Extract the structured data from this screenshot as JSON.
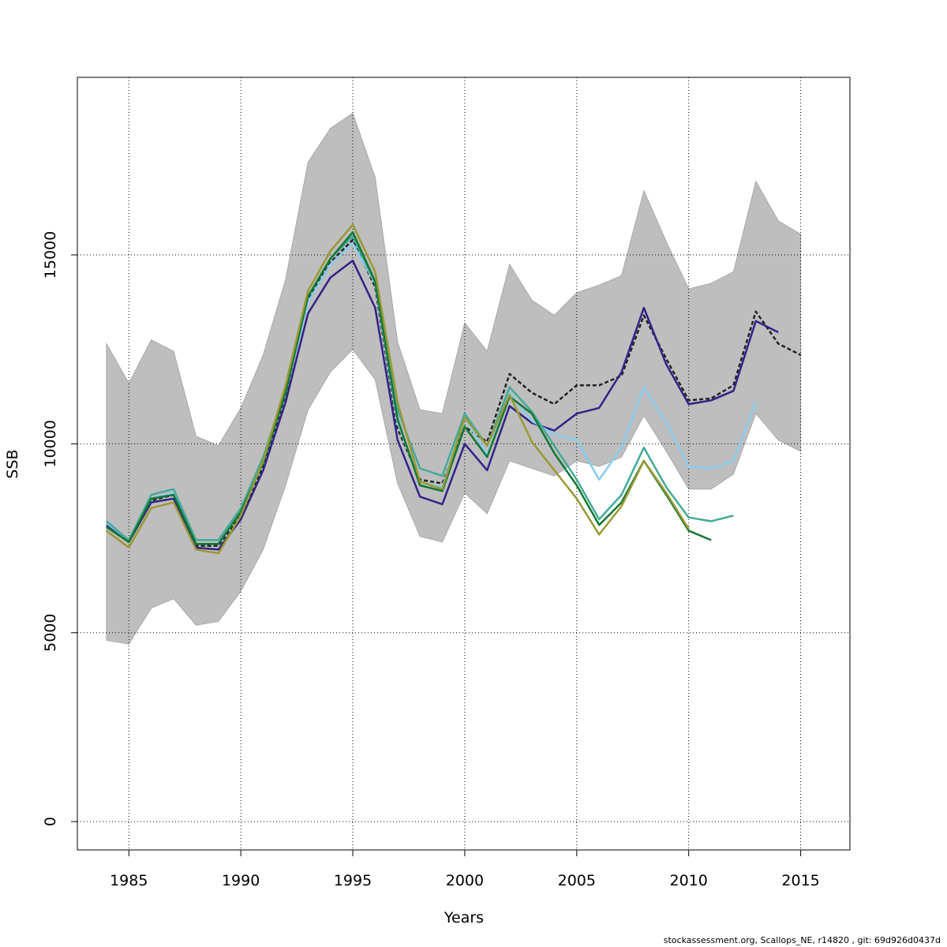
{
  "chart_data": {
    "type": "line",
    "xlabel": "Years",
    "ylabel": "SSB",
    "xlim": [
      1982.7,
      2017.2
    ],
    "ylim": [
      -750,
      19700
    ],
    "x_ticks": [
      1985,
      1990,
      1995,
      2000,
      2005,
      2010,
      2015
    ],
    "y_ticks": [
      0,
      5000,
      10000,
      15000
    ],
    "grid": true,
    "band": {
      "color": "#bebebe",
      "x": [
        1984,
        1985,
        1986,
        1987,
        1988,
        1989,
        1990,
        1991,
        1992,
        1993,
        1994,
        1995,
        1996,
        1997,
        1998,
        1999,
        2000,
        2001,
        2002,
        2003,
        2004,
        2005,
        2006,
        2007,
        2008,
        2009,
        2010,
        2011,
        2012,
        2013,
        2014,
        2015
      ],
      "upper": [
        12650,
        11600,
        12750,
        12450,
        10200,
        9950,
        10950,
        12350,
        14350,
        17450,
        18350,
        18750,
        17050,
        12700,
        10900,
        10800,
        13200,
        12450,
        14750,
        13800,
        13400,
        14000,
        14200,
        14450,
        16700,
        15350,
        14100,
        14250,
        14550,
        16950,
        15900,
        15550
      ],
      "lower": [
        4800,
        4700,
        5650,
        5900,
        5200,
        5300,
        6100,
        7200,
        8900,
        10900,
        11900,
        12500,
        11700,
        8950,
        7550,
        7400,
        8700,
        8150,
        9550,
        9350,
        9150,
        9550,
        9400,
        9650,
        10750,
        9800,
        8800,
        8800,
        9200,
        10800,
        10100,
        9800
      ]
    },
    "series": [
      {
        "color": "#222222",
        "dashed": true,
        "x": [
          1984,
          1985,
          1986,
          1987,
          1988,
          1989,
          1990,
          1991,
          1992,
          1993,
          1994,
          1995,
          1996,
          1997,
          1998,
          1999,
          2000,
          2001,
          2002,
          2003,
          2004,
          2005,
          2006,
          2007,
          2008,
          2009,
          2010,
          2011,
          2012,
          2013,
          2014,
          2015
        ],
        "values": [
          7800,
          7400,
          8500,
          8650,
          7300,
          7300,
          8100,
          9400,
          11300,
          13800,
          14800,
          15400,
          14150,
          10400,
          9050,
          8950,
          10450,
          10050,
          11850,
          11350,
          11050,
          11550,
          11550,
          11800,
          13400,
          12250,
          11150,
          11200,
          11550,
          13500,
          12650,
          12350
        ]
      },
      {
        "color": "#332288",
        "dashed": false,
        "x": [
          1984,
          1985,
          1986,
          1987,
          1988,
          1989,
          1990,
          1991,
          1992,
          1993,
          1994,
          1995,
          1996,
          1997,
          1998,
          1999,
          2000,
          2001,
          2002,
          2003,
          2004,
          2005,
          2006,
          2007,
          2008,
          2009,
          2010,
          2011,
          2012,
          2013,
          2014
        ],
        "values": [
          7850,
          7400,
          8450,
          8550,
          7250,
          7200,
          8000,
          9300,
          11100,
          13450,
          14400,
          14850,
          13600,
          10100,
          8600,
          8400,
          10000,
          9300,
          11000,
          10550,
          10350,
          10800,
          10950,
          11900,
          13600,
          12100,
          11050,
          11150,
          11400,
          13250,
          12950
        ]
      },
      {
        "color": "#88ccee",
        "dashed": false,
        "x": [
          1984,
          1985,
          1986,
          1987,
          1988,
          1989,
          1990,
          1991,
          1992,
          1993,
          1994,
          1995,
          1996,
          1997,
          1998,
          1999,
          2000,
          2001,
          2002,
          2003,
          2004,
          2005,
          2006,
          2007,
          2008,
          2009,
          2010,
          2011,
          2012,
          2013
        ],
        "values": [
          7900,
          7450,
          8550,
          8700,
          7350,
          7350,
          8200,
          9550,
          11350,
          13750,
          14750,
          15300,
          14250,
          10550,
          9000,
          8850,
          10700,
          9700,
          11350,
          10600,
          10250,
          10100,
          9050,
          9900,
          11500,
          10550,
          9400,
          9350,
          9550,
          11100
        ]
      },
      {
        "color": "#44aa99",
        "dashed": false,
        "x": [
          1984,
          1985,
          1986,
          1987,
          1988,
          1989,
          1990,
          1991,
          1992,
          1993,
          1994,
          1995,
          1996,
          1997,
          1998,
          1999,
          2000,
          2001,
          2002,
          2003,
          2004,
          2005,
          2006,
          2007,
          2008,
          2009,
          2010,
          2011,
          2012
        ],
        "values": [
          7950,
          7450,
          8650,
          8800,
          7450,
          7450,
          8300,
          9650,
          11450,
          13900,
          14900,
          15500,
          14250,
          10900,
          9350,
          9150,
          10800,
          9950,
          11500,
          10850,
          9950,
          9050,
          8000,
          8650,
          9900,
          8850,
          8050,
          7950,
          8100
        ]
      },
      {
        "color": "#117733",
        "dashed": false,
        "x": [
          1984,
          1985,
          1986,
          1987,
          1988,
          1989,
          1990,
          1991,
          1992,
          1993,
          1994,
          1995,
          1996,
          1997,
          1998,
          1999,
          2000,
          2001,
          2002,
          2003,
          2004,
          2005,
          2006,
          2007,
          2008,
          2009,
          2010,
          2011
        ],
        "values": [
          7800,
          7400,
          8550,
          8650,
          7350,
          7350,
          8200,
          9500,
          11350,
          13900,
          14900,
          15600,
          14300,
          10650,
          8900,
          8750,
          10450,
          9650,
          11250,
          10800,
          9750,
          8900,
          7850,
          8450,
          9550,
          8650,
          7700,
          7450
        ]
      },
      {
        "color": "#999933",
        "dashed": false,
        "x": [
          1984,
          1985,
          1986,
          1987,
          1988,
          1989,
          1990,
          1991,
          1992,
          1993,
          1994,
          1995,
          1996,
          1997,
          1998,
          1999,
          2000,
          2001,
          2002,
          2003,
          2004,
          2005,
          2006,
          2007,
          2008,
          2009,
          2010
        ],
        "values": [
          7700,
          7250,
          8300,
          8450,
          7200,
          7100,
          8100,
          9550,
          11550,
          14050,
          15100,
          15800,
          14550,
          11100,
          9000,
          8800,
          10700,
          9950,
          11300,
          10050,
          9300,
          8550,
          7600,
          8350,
          9550,
          8700,
          7750
        ]
      }
    ]
  },
  "footer": "stockassessment.org, Scallops_NE, r14820 , git: 69d926d0437d"
}
